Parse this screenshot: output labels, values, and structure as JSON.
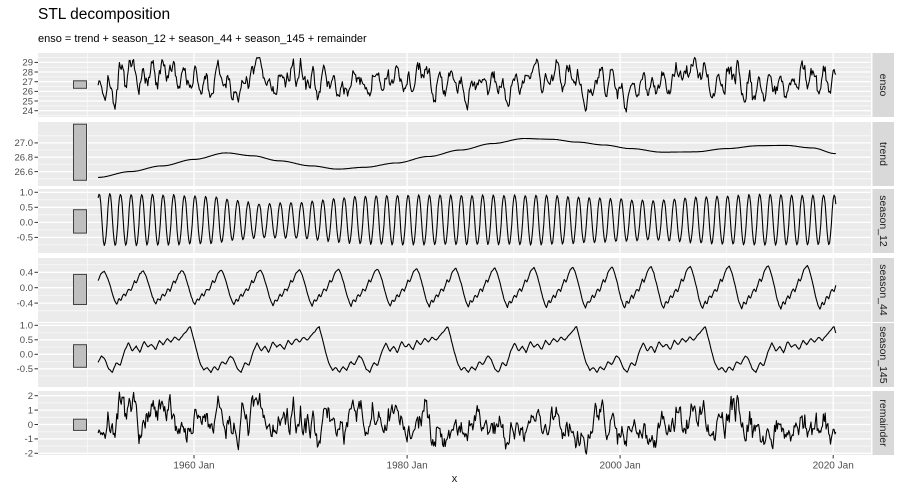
{
  "title": "STL decomposition",
  "subtitle": "enso = trend + season_12 + season_44 + season_145 + remainder",
  "x_axis_label": "x",
  "colors": {
    "background": "#FFFFFF",
    "panel_background": "#EBEBEB",
    "strip_background": "#D9D9D9",
    "grid_line": "#FFFFFF",
    "series_line": "#000000",
    "axis_text": "#4D4D4D",
    "tick_mark": "#333333",
    "strip_text": "#1A1A1A",
    "scale_bar_fill": "#BFBFBF",
    "scale_bar_border": "#404040"
  },
  "chart_data": {
    "type": "line",
    "title": "STL decomposition",
    "subtitle": "enso = trend + season_12 + season_44 + season_145 + remainder",
    "xlabel": "x",
    "legend": "none",
    "grid": "on",
    "x_data_range_years": [
      1951.0,
      2020.25
    ],
    "x_axis_range_years": [
      1945.35,
      2023.55
    ],
    "x_ticks": [
      {
        "year": 1960,
        "label": "1960 Jan"
      },
      {
        "year": 1980,
        "label": "1980 Jan"
      },
      {
        "year": 2000,
        "label": "2000 Jan"
      },
      {
        "year": 2020,
        "label": "2020 Jan"
      }
    ],
    "x_minor_years": [
      1950,
      1970,
      1990,
      2010
    ],
    "sampling": "monthly",
    "panels": [
      {
        "name": "enso",
        "ylim": [
          23.35,
          29.97
        ],
        "yticks": [
          {
            "v": 24,
            "label": "24"
          },
          {
            "v": 25,
            "label": "25"
          },
          {
            "v": 26,
            "label": "26"
          },
          {
            "v": 27,
            "label": "27"
          },
          {
            "v": 28,
            "label": "28"
          },
          {
            "v": 29,
            "label": "29"
          }
        ],
        "scale_bar_range": [
          26.31,
          27.09
        ],
        "series": "sum_of_components",
        "value_clamp": [
          23.5,
          29.5
        ]
      },
      {
        "name": "trend",
        "ylim": [
          26.4,
          27.29
        ],
        "yticks": [
          {
            "v": 26.6,
            "label": "26.6"
          },
          {
            "v": 26.8,
            "label": "26.8"
          },
          {
            "v": 27.0,
            "label": "27.0"
          }
        ],
        "scale_bar_range": [
          26.48,
          27.26
        ],
        "series": "keypoints_smooth",
        "keypoints": [
          [
            1951,
            26.52
          ],
          [
            1954,
            26.6
          ],
          [
            1957,
            26.68
          ],
          [
            1960,
            26.77
          ],
          [
            1963,
            26.86
          ],
          [
            1965.5,
            26.82
          ],
          [
            1968,
            26.75
          ],
          [
            1971,
            26.68
          ],
          [
            1973.5,
            26.635
          ],
          [
            1976,
            26.66
          ],
          [
            1979,
            26.72
          ],
          [
            1982,
            26.81
          ],
          [
            1985,
            26.9
          ],
          [
            1988,
            26.99
          ],
          [
            1991,
            27.06
          ],
          [
            1993.5,
            27.05
          ],
          [
            1996,
            27.01
          ],
          [
            1998.5,
            26.97
          ],
          [
            2001,
            26.92
          ],
          [
            2004,
            26.87
          ],
          [
            2007,
            26.875
          ],
          [
            2010,
            26.92
          ],
          [
            2013,
            26.96
          ],
          [
            2015.5,
            26.965
          ],
          [
            2018,
            26.93
          ],
          [
            2020.25,
            26.85
          ]
        ]
      },
      {
        "name": "season_12",
        "ylim": [
          -1.02,
          1.11
        ],
        "yticks": [
          {
            "v": -0.5,
            "label": "-0.5"
          },
          {
            "v": 0,
            "label": "0.0"
          },
          {
            "v": 0.5,
            "label": "0.5"
          },
          {
            "v": 1,
            "label": "1.0"
          }
        ],
        "scale_bar_range": [
          -0.36,
          0.42
        ],
        "series": "annual_cycle",
        "period_months": 12,
        "phase_origin_year": 1950.85,
        "peak_exponent": 0.75,
        "trough_scale": 0.82,
        "amplitude_envelope": [
          [
            1951,
            0.95
          ],
          [
            1958,
            0.92
          ],
          [
            1962,
            0.85
          ],
          [
            1966,
            0.62
          ],
          [
            1970,
            0.66
          ],
          [
            1975,
            0.86
          ],
          [
            1980,
            0.92
          ],
          [
            1986,
            0.9
          ],
          [
            1992,
            0.92
          ],
          [
            1998,
            0.82
          ],
          [
            2003,
            0.72
          ],
          [
            2008,
            0.86
          ],
          [
            2013,
            0.93
          ],
          [
            2018,
            0.9
          ],
          [
            2020.3,
            0.9
          ]
        ]
      },
      {
        "name": "season_44",
        "ylim": [
          -0.89,
          0.77
        ],
        "yticks": [
          {
            "v": -0.4,
            "label": "-0.4"
          },
          {
            "v": 0,
            "label": "0.0"
          },
          {
            "v": 0.4,
            "label": "0.4"
          }
        ],
        "scale_bar_range": [
          -0.435,
          0.345
        ],
        "series": "cycle_template",
        "period_months": 44,
        "phase_origin_year": 1949.1,
        "amplitude_range": [
          0.43,
          0.58
        ],
        "cycle_template": [
          [
            0.0,
            -1.0
          ],
          [
            0.05,
            -0.62
          ],
          [
            0.1,
            -0.78
          ],
          [
            0.17,
            -0.35
          ],
          [
            0.22,
            -0.5
          ],
          [
            0.3,
            -0.05
          ],
          [
            0.36,
            -0.18
          ],
          [
            0.45,
            0.4
          ],
          [
            0.5,
            0.28
          ],
          [
            0.58,
            0.8
          ],
          [
            0.64,
            0.95
          ],
          [
            0.68,
            1.0
          ],
          [
            0.74,
            0.72
          ],
          [
            0.82,
            0.15
          ],
          [
            0.9,
            -0.5
          ],
          [
            0.95,
            -0.8
          ],
          [
            1.0,
            -1.0
          ]
        ]
      },
      {
        "name": "season_145",
        "ylim": [
          -1.13,
          1.08
        ],
        "yticks": [
          {
            "v": -0.5,
            "label": "-0.5"
          },
          {
            "v": 0,
            "label": "0.0"
          },
          {
            "v": 0.5,
            "label": "0.5"
          },
          {
            "v": 1,
            "label": "1.0"
          }
        ],
        "scale_bar_range": [
          -0.45,
          0.33
        ],
        "series": "cycle_template",
        "period_months": 145,
        "phase_origin_year": 1949.5,
        "amplitude_range": [
          1.0,
          1.0
        ],
        "cycle_template": [
          [
            0.0,
            -0.63
          ],
          [
            0.025,
            -0.42
          ],
          [
            0.055,
            -0.55
          ],
          [
            0.085,
            -0.25
          ],
          [
            0.115,
            -0.36
          ],
          [
            0.15,
            -0.05
          ],
          [
            0.175,
            -0.15
          ],
          [
            0.205,
            -0.5
          ],
          [
            0.235,
            -0.62
          ],
          [
            0.265,
            -0.28
          ],
          [
            0.295,
            -0.4
          ],
          [
            0.33,
            0.12
          ],
          [
            0.36,
            0.4
          ],
          [
            0.39,
            0.1
          ],
          [
            0.42,
            0.28
          ],
          [
            0.45,
            0.05
          ],
          [
            0.48,
            0.45
          ],
          [
            0.51,
            0.25
          ],
          [
            0.54,
            0.35
          ],
          [
            0.57,
            0.15
          ],
          [
            0.6,
            0.48
          ],
          [
            0.63,
            0.32
          ],
          [
            0.66,
            0.55
          ],
          [
            0.69,
            0.42
          ],
          [
            0.72,
            0.6
          ],
          [
            0.75,
            0.48
          ],
          [
            0.78,
            0.65
          ],
          [
            0.81,
            0.8
          ],
          [
            0.84,
            0.97
          ],
          [
            0.865,
            0.55
          ],
          [
            0.89,
            0.1
          ],
          [
            0.915,
            -0.3
          ],
          [
            0.945,
            -0.55
          ],
          [
            0.97,
            -0.45
          ],
          [
            1.0,
            -0.63
          ]
        ]
      },
      {
        "name": "remainder",
        "ylim": [
          -2.12,
          2.33
        ],
        "yticks": [
          {
            "v": -2,
            "label": "-2"
          },
          {
            "v": -1,
            "label": "-1"
          },
          {
            "v": 0,
            "label": "0"
          },
          {
            "v": 1,
            "label": "1"
          },
          {
            "v": 2,
            "label": "2"
          }
        ],
        "scale_bar_range": [
          -0.41,
          0.37
        ],
        "series": "autoregressive_noise",
        "ar_coefficient": 0.8,
        "seed": 7,
        "value_range": [
          -2.05,
          2.25
        ]
      }
    ]
  }
}
